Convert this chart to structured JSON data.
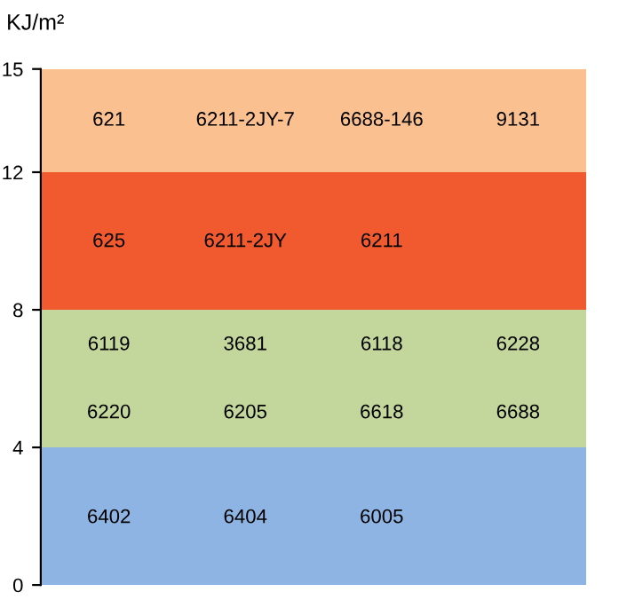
{
  "chart_data": {
    "type": "bar",
    "stacked": true,
    "ylabel": "KJ/m²",
    "ylim": [
      0,
      15
    ],
    "yticks": [
      0,
      4,
      8,
      12,
      15
    ],
    "tick_labels": "y",
    "categories": [
      null
    ],
    "series": [
      {
        "color": "#8eb4e3",
        "values": [
          4
        ]
      },
      {
        "color": "#c3d69b",
        "values": [
          4
        ]
      },
      {
        "color": "#f15a2f",
        "values": [
          4
        ]
      },
      {
        "color": "#fac090",
        "values": [
          3
        ]
      }
    ],
    "annotations": [
      "621",
      "6211-2JY-7",
      "6688-146",
      "9131",
      "625",
      "6211-2JY",
      "6211",
      "6119",
      "3681",
      "6118",
      "6228",
      "6220",
      "6205",
      "6618",
      "6688",
      "6402",
      "6404",
      "6005"
    ]
  }
}
